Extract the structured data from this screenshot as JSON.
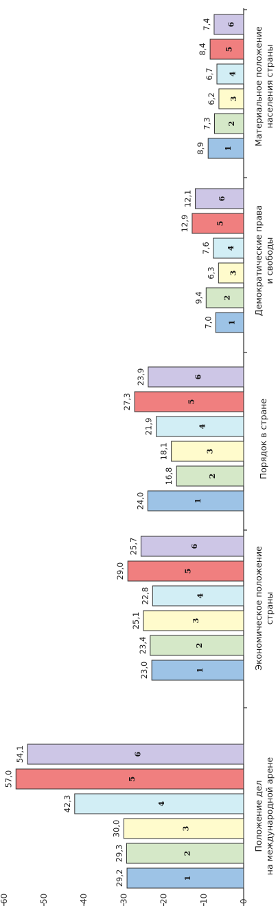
{
  "chart_data": {
    "type": "bar",
    "orientation": "horizontal",
    "categories": [
      [
        "Положение дел",
        "на международной арене"
      ],
      [
        "Экономическое положение",
        "страны"
      ],
      [
        "Порядок в стране"
      ],
      [
        "Демократические права",
        "и свободы"
      ],
      [
        "Материальное положение",
        "населения страны"
      ]
    ],
    "series": [
      {
        "name": "1",
        "color": "#9dc3e6",
        "values": [
          29.2,
          23.0,
          24.0,
          7.0,
          8.9
        ]
      },
      {
        "name": "2",
        "color": "#d5e8c8",
        "values": [
          29.3,
          23.4,
          16.8,
          9.4,
          7.3
        ]
      },
      {
        "name": "3",
        "color": "#fffbcc",
        "values": [
          30.0,
          25.1,
          18.1,
          6.3,
          6.2
        ]
      },
      {
        "name": "4",
        "color": "#d2eef5",
        "values": [
          42.3,
          22.8,
          21.9,
          7.6,
          6.7
        ]
      },
      {
        "name": "5",
        "color": "#f07f7f",
        "values": [
          57.0,
          29.0,
          27.3,
          12.9,
          8.4
        ]
      },
      {
        "name": "6",
        "color": "#cdc6e6",
        "values": [
          54.1,
          25.7,
          23.9,
          12.1,
          7.4
        ]
      }
    ],
    "value_labels": [
      [
        "29,2",
        "23,0",
        "24,0",
        "7,0",
        "8,9"
      ],
      [
        "29,3",
        "23,4",
        "16,8",
        "9,4",
        "7,3"
      ],
      [
        "30,0",
        "25,1",
        "18,1",
        "6,3",
        "6,2"
      ],
      [
        "42,3",
        "22,8",
        "21,9",
        "7,6",
        "6,7"
      ],
      [
        "57,0",
        "29,0",
        "27,3",
        "12,9",
        "8,4"
      ],
      [
        "54,1",
        "25,7",
        "23,9",
        "12,1",
        "7,4"
      ]
    ],
    "axis_ticks": [
      "0",
      "10",
      "20",
      "30",
      "40",
      "50",
      "60"
    ],
    "xlim": [
      0,
      60
    ],
    "grid": false
  }
}
